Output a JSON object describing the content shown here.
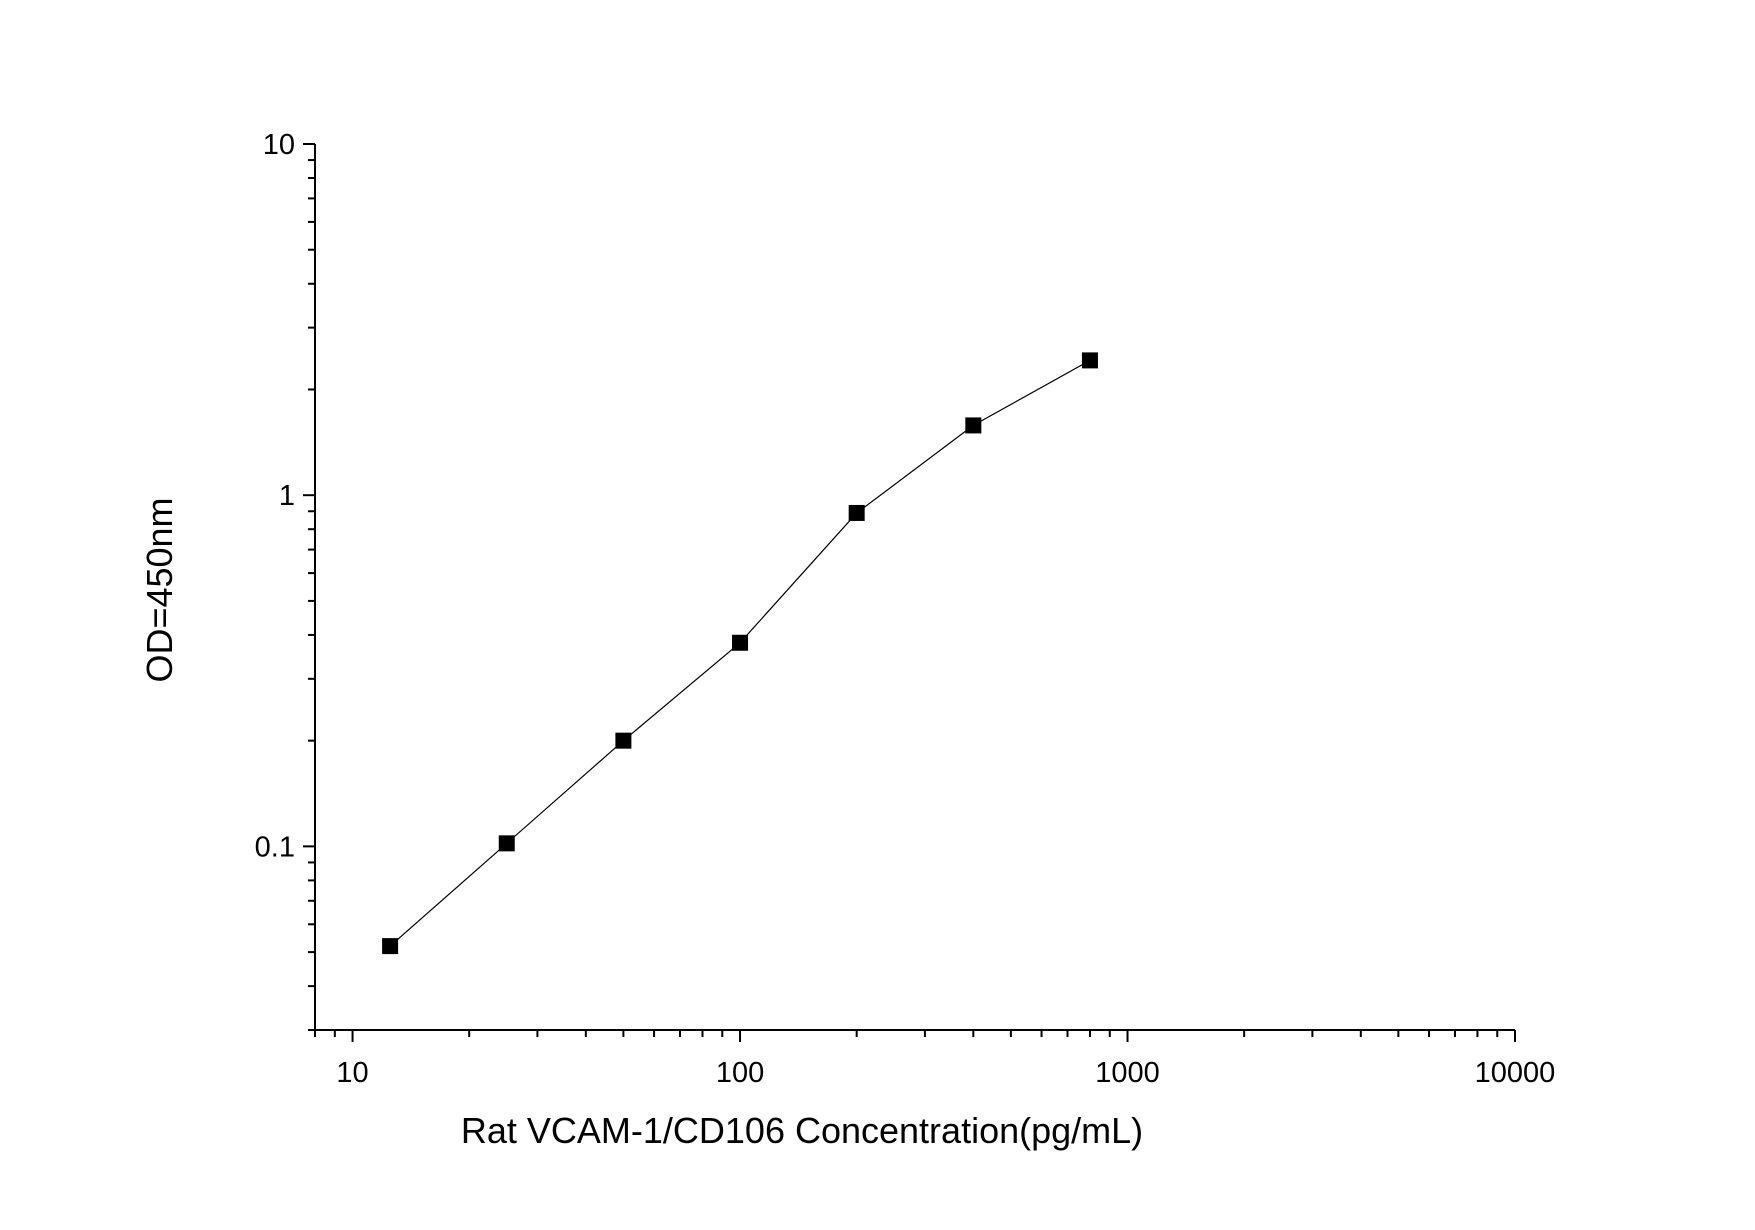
{
  "chart_data": {
    "type": "line",
    "title": "",
    "xlabel": "Rat VCAM-1/CD106 Concentration(pg/mL)",
    "ylabel": "OD=450nm",
    "x_scale": "log",
    "y_scale": "log",
    "xlim": [
      8,
      10000
    ],
    "ylim": [
      0.03,
      10
    ],
    "x_ticks": [
      10,
      100,
      1000,
      10000
    ],
    "x_tick_labels": [
      "10",
      "100",
      "1000",
      "10000"
    ],
    "y_ticks": [
      0.1,
      1,
      10
    ],
    "y_tick_labels": [
      "0.1",
      "1",
      "10"
    ],
    "grid": false,
    "legend": "none",
    "marker": "square",
    "colors": {
      "marker": "#000000",
      "line": "#000000"
    },
    "series": [
      {
        "x": [
          12.5,
          25,
          50,
          100,
          200,
          400,
          800
        ],
        "y": [
          0.052,
          0.102,
          0.2,
          0.38,
          0.89,
          1.58,
          2.42
        ]
      }
    ]
  }
}
